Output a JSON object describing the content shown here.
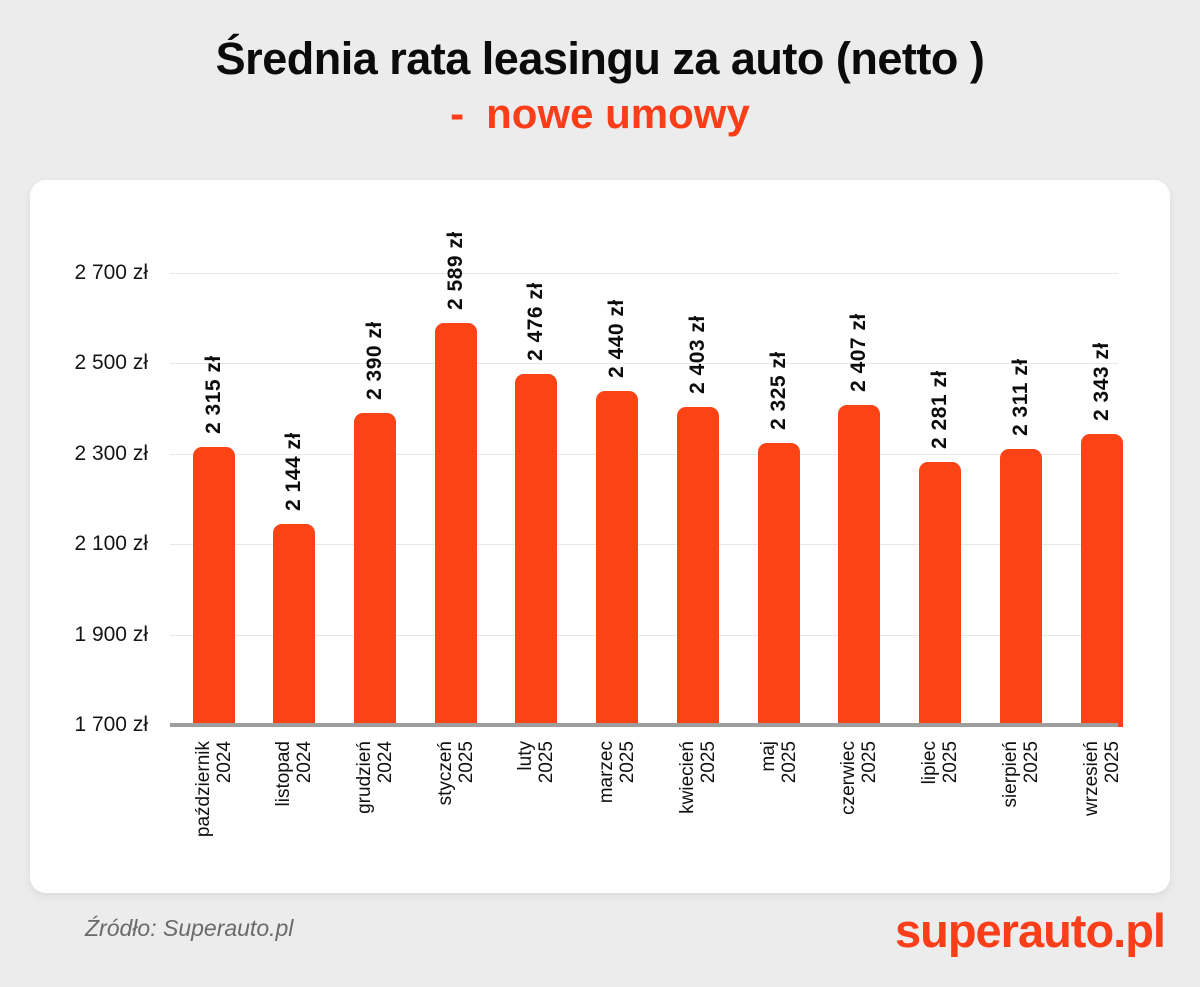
{
  "title": {
    "line1": "Średnia rata leasingu za auto (netto )",
    "dash": "-",
    "line2": "nowe umowy"
  },
  "footer": {
    "source": "Źródło: Superauto.pl",
    "brand": "superauto.pl"
  },
  "colors": {
    "accent": "#FB4315",
    "title_accent": "#FA3E19",
    "background": "#ECECEC",
    "card": "#FFFFFF",
    "grid": "#E8E8E8",
    "axis_baseline": "#9E9E9E",
    "text": "#111111",
    "muted_text": "#6A6A6A"
  },
  "chart_data": {
    "type": "bar",
    "title": "Średnia rata leasingu za auto (netto) - nowe umowy",
    "xlabel": "",
    "ylabel": "",
    "ylim": [
      1700,
      2700
    ],
    "grid": true,
    "legend": "none",
    "bar_color": "#FB4315",
    "categories": [
      {
        "month": "październik",
        "year": "2024"
      },
      {
        "month": "listopad",
        "year": "2024"
      },
      {
        "month": "grudzień",
        "year": "2024"
      },
      {
        "month": "styczeń",
        "year": "2025"
      },
      {
        "month": "luty",
        "year": "2025"
      },
      {
        "month": "marzec",
        "year": "2025"
      },
      {
        "month": "kwiecień",
        "year": "2025"
      },
      {
        "month": "maj",
        "year": "2025"
      },
      {
        "month": "czerwiec",
        "year": "2025"
      },
      {
        "month": "lipiec",
        "year": "2025"
      },
      {
        "month": "sierpień",
        "year": "2025"
      },
      {
        "month": "wrzesień",
        "year": "2025"
      }
    ],
    "values": [
      2315,
      2144,
      2390,
      2589,
      2476,
      2440,
      2403,
      2325,
      2407,
      2281,
      2311,
      2343
    ],
    "value_labels": [
      "2 315 zł",
      "2 144 zł",
      "2 390 zł",
      "2 589 zł",
      "2 476 zł",
      "2 440 zł",
      "2 403 zł",
      "2 325 zł",
      "2 407 zł",
      "2 281 zł",
      "2 311 zł",
      "2 343 zł"
    ],
    "yticks": [
      {
        "value": 1700,
        "label": "1 700 zł"
      },
      {
        "value": 1900,
        "label": "1 900 zł"
      },
      {
        "value": 2100,
        "label": "2 100 zł"
      },
      {
        "value": 2300,
        "label": "2 300 zł"
      },
      {
        "value": 2500,
        "label": "2 500 zł"
      },
      {
        "value": 2700,
        "label": "2 700 zł"
      }
    ]
  }
}
